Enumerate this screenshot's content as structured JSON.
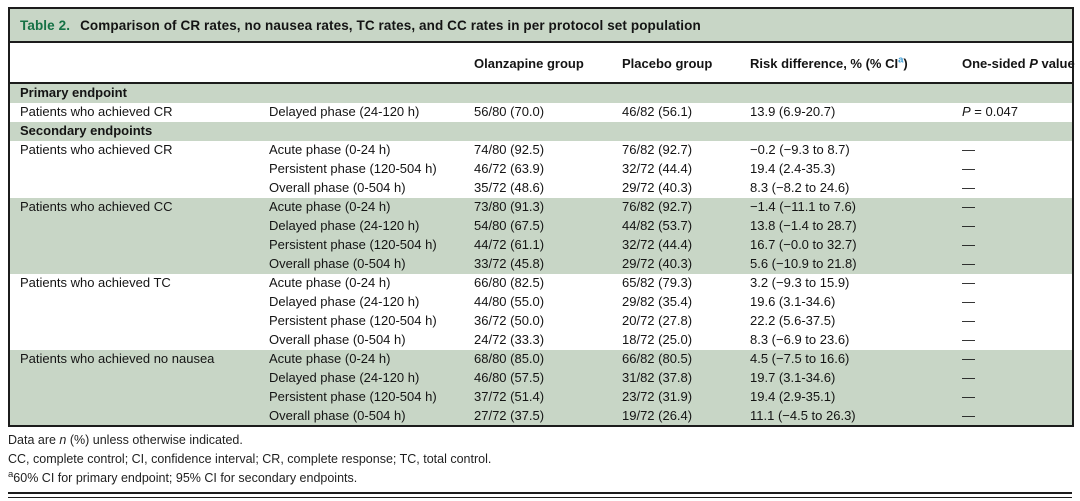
{
  "colors": {
    "row_shade_green": "#c8d6c6",
    "title_green": "#157145",
    "superscript_blue": "#3b9cd6"
  },
  "table": {
    "title_label": "Table 2.",
    "title_text": "Comparison of CR rates, no nausea rates, TC rates, and CC rates in per protocol set population",
    "columns": {
      "olanzapine": "Olanzapine group",
      "placebo": "Placebo group",
      "risk_pre": "Risk difference, % (% CI",
      "risk_sup": "a",
      "risk_post": ")",
      "p_pre": "One-sided ",
      "p_italic": "P",
      "p_post": " value"
    },
    "sections": [
      {
        "header": "Primary endpoint",
        "rows": [
          {
            "group": "Patients who achieved CR",
            "phase": "Delayed phase (24-120 h)",
            "olz": "56/80 (70.0)",
            "pbo": "46/82 (56.1)",
            "rd": "13.9 (6.9-20.7)",
            "p": {
              "italic": "P",
              "rest": " = 0.047"
            },
            "shaded": false
          }
        ]
      },
      {
        "header": "Secondary endpoints",
        "rows": [
          {
            "group": "Patients who achieved CR",
            "phase": "Acute phase (0-24 h)",
            "olz": "74/80 (92.5)",
            "pbo": "76/82 (92.7)",
            "rd": "−0.2 (−9.3 to 8.7)",
            "p": "—",
            "shaded": false
          },
          {
            "group": "",
            "phase": "Persistent phase (120-504 h)",
            "olz": "46/72 (63.9)",
            "pbo": "32/72 (44.4)",
            "rd": "19.4 (2.4-35.3)",
            "p": "—",
            "shaded": false
          },
          {
            "group": "",
            "phase": "Overall phase (0-504 h)",
            "olz": "35/72 (48.6)",
            "pbo": "29/72 (40.3)",
            "rd": "8.3 (−8.2 to 24.6)",
            "p": "—",
            "shaded": false
          },
          {
            "group": "Patients who achieved CC",
            "phase": "Acute phase (0-24 h)",
            "olz": "73/80 (91.3)",
            "pbo": "76/82 (92.7)",
            "rd": "−1.4 (−11.1 to 7.6)",
            "p": "—",
            "shaded": true
          },
          {
            "group": "",
            "phase": "Delayed phase (24-120 h)",
            "olz": "54/80 (67.5)",
            "pbo": "44/82 (53.7)",
            "rd": "13.8 (−1.4 to 28.7)",
            "p": "—",
            "shaded": true
          },
          {
            "group": "",
            "phase": "Persistent phase (120-504 h)",
            "olz": "44/72 (61.1)",
            "pbo": "32/72 (44.4)",
            "rd": "16.7 (−0.0 to 32.7)",
            "p": "—",
            "shaded": true
          },
          {
            "group": "",
            "phase": "Overall phase (0-504 h)",
            "olz": "33/72 (45.8)",
            "pbo": "29/72 (40.3)",
            "rd": "5.6 (−10.9 to 21.8)",
            "p": "—",
            "shaded": true
          },
          {
            "group": "Patients who achieved TC",
            "phase": "Acute phase (0-24 h)",
            "olz": "66/80 (82.5)",
            "pbo": "65/82 (79.3)",
            "rd": "3.2 (−9.3 to 15.9)",
            "p": "—",
            "shaded": false
          },
          {
            "group": "",
            "phase": "Delayed phase (24-120 h)",
            "olz": "44/80 (55.0)",
            "pbo": "29/82 (35.4)",
            "rd": "19.6 (3.1-34.6)",
            "p": "—",
            "shaded": false
          },
          {
            "group": "",
            "phase": "Persistent phase (120-504 h)",
            "olz": "36/72 (50.0)",
            "pbo": "20/72 (27.8)",
            "rd": "22.2 (5.6-37.5)",
            "p": "—",
            "shaded": false
          },
          {
            "group": "",
            "phase": "Overall phase (0-504 h)",
            "olz": "24/72 (33.3)",
            "pbo": "18/72 (25.0)",
            "rd": "8.3 (−6.9 to 23.6)",
            "p": "—",
            "shaded": false
          },
          {
            "group": "Patients who achieved no nausea",
            "phase": "Acute phase (0-24 h)",
            "olz": "68/80 (85.0)",
            "pbo": "66/82 (80.5)",
            "rd": "4.5 (−7.5 to 16.6)",
            "p": "—",
            "shaded": true
          },
          {
            "group": "",
            "phase": "Delayed phase (24-120 h)",
            "olz": "46/80 (57.5)",
            "pbo": "31/82 (37.8)",
            "rd": "19.7 (3.1-34.6)",
            "p": "—",
            "shaded": true
          },
          {
            "group": "",
            "phase": "Persistent phase (120-504 h)",
            "olz": "37/72 (51.4)",
            "pbo": "23/72 (31.9)",
            "rd": "19.4 (2.9-35.1)",
            "p": "—",
            "shaded": true
          },
          {
            "group": "",
            "phase": "Overall phase (0-504 h)",
            "olz": "27/72 (37.5)",
            "pbo": "19/72 (26.4)",
            "rd": "11.1 (−4.5 to 26.3)",
            "p": "—",
            "shaded": true
          }
        ]
      }
    ]
  },
  "footnotes": {
    "line1_pre": "Data are ",
    "line1_italic": "n",
    "line1_post": " (%) unless otherwise indicated.",
    "line2": "CC, complete control; CI, confidence interval; CR, complete response; TC, total control.",
    "line3_sup": "a",
    "line3_text": "60% CI for primary endpoint; 95% CI for secondary endpoints."
  }
}
